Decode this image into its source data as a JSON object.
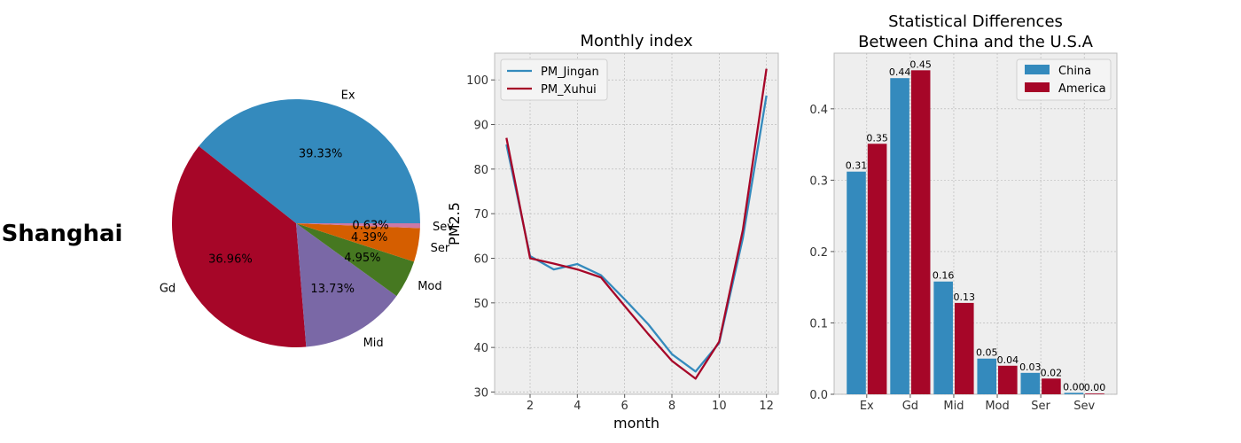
{
  "side_title": "Shanghai",
  "chart_data": [
    {
      "type": "pie",
      "labels": [
        "Ex",
        "Gd",
        "Mid",
        "Mod",
        "Ser",
        "Sev"
      ],
      "values": [
        39.33,
        36.96,
        13.73,
        4.95,
        4.39,
        0.63
      ],
      "pct_labels": [
        "39.33%",
        "36.96%",
        "13.73%",
        "4.95%",
        "4.39%",
        "0.63%"
      ],
      "colors": [
        "#348ABD",
        "#A60628",
        "#7A68A6",
        "#467821",
        "#D55E00",
        "#CC79A7"
      ],
      "start_angle_deg": 0
    },
    {
      "type": "line",
      "title": "Monthly index",
      "xlabel": "month",
      "ylabel": "PM2.5",
      "xlim": [
        0.5,
        12.5
      ],
      "ylim": [
        29.5,
        106
      ],
      "xticks": [
        2,
        4,
        6,
        8,
        10,
        12
      ],
      "yticks": [
        30,
        40,
        50,
        60,
        70,
        80,
        90,
        100
      ],
      "grid": true,
      "legend": "top-left",
      "x": [
        1,
        2,
        3,
        4,
        5,
        6,
        7,
        8,
        9,
        10,
        11,
        12
      ],
      "series": [
        {
          "name": "PM_Jingan",
          "color": "#348ABD",
          "values": [
            85.5,
            60.5,
            57.5,
            58.7,
            56.2,
            50.8,
            45.2,
            38.5,
            34.6,
            41.0,
            64.5,
            96.5
          ]
        },
        {
          "name": "PM_Xuhui",
          "color": "#A60628",
          "values": [
            87.0,
            60.0,
            58.8,
            57.5,
            55.7,
            49.3,
            43.0,
            37.0,
            33.0,
            41.3,
            66.3,
            102.5
          ]
        }
      ]
    },
    {
      "type": "bar",
      "title": "Statistical Differences\nBetween China and the U.S.A",
      "title_lines": [
        "Statistical Differences",
        "Between China and the U.S.A"
      ],
      "categories": [
        "Ex",
        "Gd",
        "Mid",
        "Mod",
        "Ser",
        "Sev"
      ],
      "ylim": [
        0,
        0.478
      ],
      "yticks": [
        0.0,
        0.1,
        0.2,
        0.3,
        0.4
      ],
      "ytick_labels": [
        "0.0",
        "0.1",
        "0.2",
        "0.3",
        "0.4"
      ],
      "grid": true,
      "legend": "top-right",
      "series": [
        {
          "name": "China",
          "color": "#348ABD",
          "values": [
            0.312,
            0.443,
            0.158,
            0.05,
            0.03,
            0.002
          ],
          "labels": [
            "0.31",
            "0.44",
            "0.16",
            "0.05",
            "0.03",
            "0.00"
          ]
        },
        {
          "name": "America",
          "color": "#A60628",
          "values": [
            0.351,
            0.454,
            0.128,
            0.04,
            0.022,
            0.001
          ],
          "labels": [
            "0.35",
            "0.45",
            "0.13",
            "0.04",
            "0.02",
            "0.00"
          ]
        }
      ]
    }
  ]
}
